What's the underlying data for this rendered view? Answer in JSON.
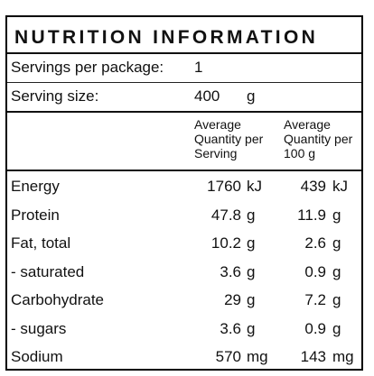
{
  "title": "NUTRITION INFORMATION",
  "servings_label": "Servings per package:",
  "servings_value": "1",
  "serving_size_label": "Serving size:",
  "serving_size_value": "400",
  "serving_size_unit": "g",
  "column_headers": {
    "per_serving": [
      "Average",
      "Quantity per",
      "Serving"
    ],
    "per_100g": [
      "Average",
      "Quantity per",
      "100 g"
    ]
  },
  "rows": [
    {
      "name": "Energy",
      "serving": "1760",
      "serving_unit": "kJ",
      "per100": "439",
      "per100_unit": "kJ"
    },
    {
      "name": "Protein",
      "serving": "47.8",
      "serving_unit": "g",
      "per100": "11.9",
      "per100_unit": "g"
    },
    {
      "name": "Fat, total",
      "serving": "10.2",
      "serving_unit": "g",
      "per100": "2.6",
      "per100_unit": "g"
    },
    {
      "name": "- saturated",
      "serving": "3.6",
      "serving_unit": "g",
      "per100": "0.9",
      "per100_unit": "g"
    },
    {
      "name": "Carbohydrate",
      "serving": "29",
      "serving_unit": "g",
      "per100": "7.2",
      "per100_unit": "g"
    },
    {
      "name": "- sugars",
      "serving": "3.6",
      "serving_unit": "g",
      "per100": "0.9",
      "per100_unit": "g"
    },
    {
      "name": "Sodium",
      "serving": "570",
      "serving_unit": "mg",
      "per100": "143",
      "per100_unit": "mg"
    }
  ]
}
